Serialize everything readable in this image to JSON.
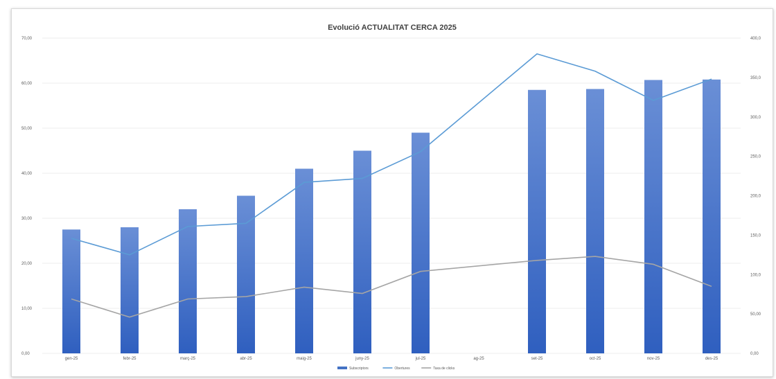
{
  "chart_data": {
    "type": "bar",
    "title": "Evolució ACTUALITAT CERCA 2025",
    "categories": [
      "gen-25",
      "febr-25",
      "març-25",
      "abr-25",
      "maig-25",
      "juny-25",
      "jul-25",
      "ag-25",
      "set-25",
      "oct-25",
      "nov-25",
      "des-25"
    ],
    "y_left": {
      "ticks": [
        "0,00",
        "10,00",
        "20,00",
        "30,00",
        "40,00",
        "50,00",
        "60,00",
        "70,00"
      ],
      "ylim": [
        0,
        70
      ]
    },
    "y_right": {
      "ticks": [
        "0,00",
        "50,00",
        "100,0",
        "150,0",
        "200,0",
        "250,0",
        "300,0",
        "350,0",
        "400,0"
      ],
      "ylim": [
        0,
        400
      ]
    },
    "series": [
      {
        "name": "Subscriptors",
        "type": "bar",
        "axis": "left",
        "color": "#4472c4",
        "values": [
          27.5,
          28,
          32,
          35,
          41,
          45,
          49,
          null,
          58.5,
          58.7,
          60.7,
          60.8
        ]
      },
      {
        "name": "Obertures",
        "type": "line",
        "axis": "right",
        "color": "#5b9bd5",
        "values": [
          146,
          125,
          161,
          165,
          217,
          222,
          256,
          null,
          380,
          358,
          321,
          348
        ]
      },
      {
        "name": "Taxa de clicks",
        "type": "line",
        "axis": "right",
        "color": "#a5a5a5",
        "values": [
          69,
          46,
          69,
          72,
          84,
          76,
          104,
          null,
          118,
          123,
          113,
          85
        ]
      }
    ],
    "legend": {
      "position": "bottom",
      "entries": [
        "Subscriptors",
        "Obertures",
        "Taxa de clicks"
      ]
    },
    "grid": true
  }
}
